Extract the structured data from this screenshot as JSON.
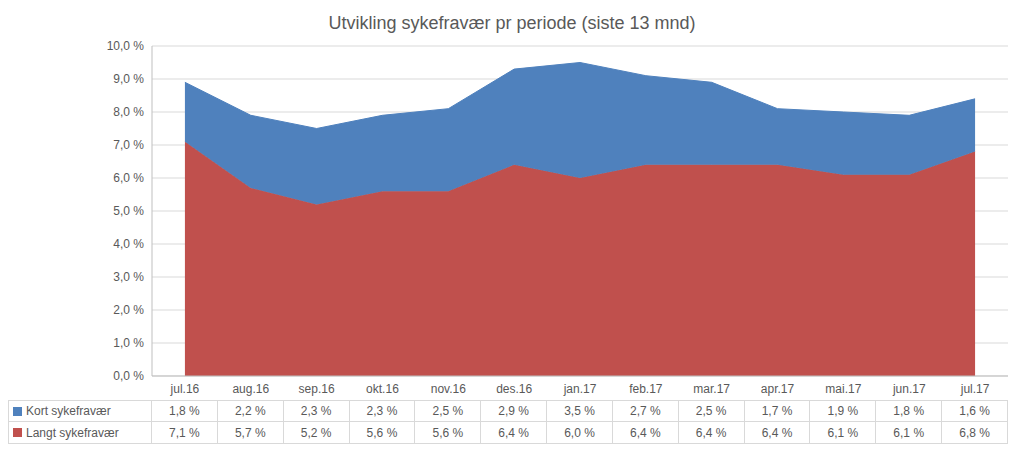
{
  "chart_data": {
    "type": "area",
    "title": "Utvikling sykefravær pr periode (siste 13 mnd)",
    "stacked": true,
    "grid": true,
    "categories": [
      "jul.16",
      "aug.16",
      "sep.16",
      "okt.16",
      "nov.16",
      "des.16",
      "jan.17",
      "feb.17",
      "mar.17",
      "apr.17",
      "mai.17",
      "jun.17",
      "jul.17"
    ],
    "ylim": [
      0,
      10
    ],
    "yticks": [
      {
        "value": 0,
        "label": "0,0 %"
      },
      {
        "value": 1,
        "label": "1,0 %"
      },
      {
        "value": 2,
        "label": "2,0 %"
      },
      {
        "value": 3,
        "label": "3,0 %"
      },
      {
        "value": 4,
        "label": "4,0 %"
      },
      {
        "value": 5,
        "label": "5,0 %"
      },
      {
        "value": 6,
        "label": "6,0 %"
      },
      {
        "value": 7,
        "label": "7,0 %"
      },
      {
        "value": 8,
        "label": "8,0 %"
      },
      {
        "value": 9,
        "label": "9,0 %"
      },
      {
        "value": 10,
        "label": "10,0 %"
      }
    ],
    "series": [
      {
        "name": "Kort sykefravær",
        "color": "#4f81bd",
        "values": [
          1.8,
          2.2,
          2.3,
          2.3,
          2.5,
          2.9,
          3.5,
          2.7,
          2.5,
          1.7,
          1.9,
          1.8,
          1.6
        ],
        "value_labels": [
          "1,8 %",
          "2,2 %",
          "2,3 %",
          "2,3 %",
          "2,5 %",
          "2,9 %",
          "3,5 %",
          "2,7 %",
          "2,5 %",
          "1,7 %",
          "1,9 %",
          "1,8 %",
          "1,6 %"
        ]
      },
      {
        "name": "Langt sykefravær",
        "color": "#c0504d",
        "values": [
          7.1,
          5.7,
          5.2,
          5.6,
          5.6,
          6.4,
          6.0,
          6.4,
          6.4,
          6.4,
          6.1,
          6.1,
          6.8
        ],
        "value_labels": [
          "7,1 %",
          "5,7 %",
          "5,2 %",
          "5,6 %",
          "5,6 %",
          "6,4 %",
          "6,0 %",
          "6,4 %",
          "6,4 %",
          "6,4 %",
          "6,1 %",
          "6,1 %",
          "6,8 %"
        ]
      }
    ]
  }
}
